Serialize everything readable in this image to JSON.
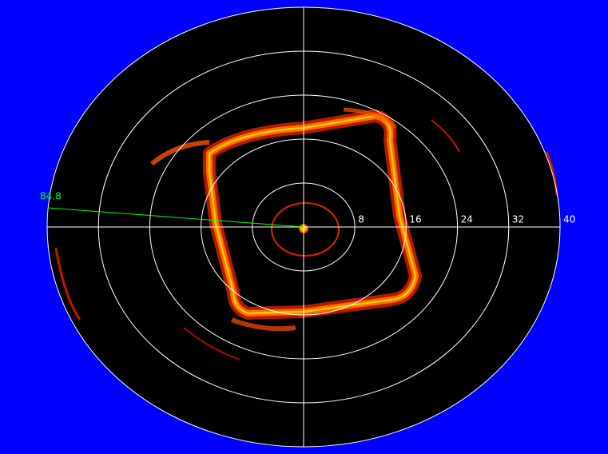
{
  "chart_data": {
    "type": "polar",
    "rlim": [
      0,
      40
    ],
    "rticks": [
      8,
      16,
      24,
      32,
      40
    ],
    "grid": true,
    "ring_color": "#ffffff",
    "cursor": {
      "label": 84.8,
      "color": "#00ff00"
    }
  }
}
